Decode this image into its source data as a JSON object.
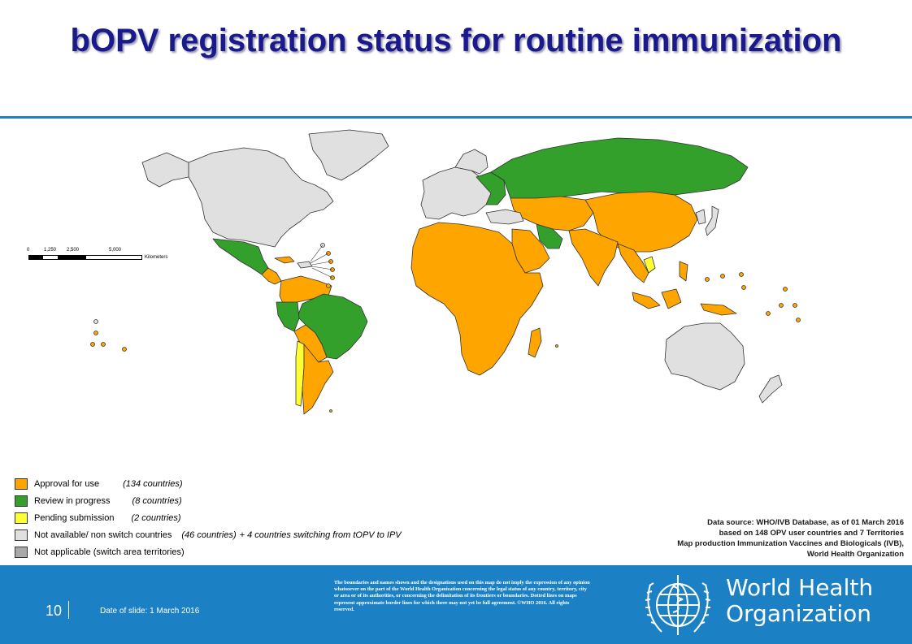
{
  "title": "bOPV registration status for routine immunization",
  "colors": {
    "approval": "#FFA500",
    "review": "#33A02C",
    "pending": "#FFFF33",
    "not_available": "#E0E0E0",
    "not_applicable": "#A9A9A9",
    "accent_blue": "#1B80C4",
    "title_blue": "#1A1A8C"
  },
  "scalebar": {
    "ticks": [
      "0",
      "1,250",
      "2,500",
      "5,000"
    ],
    "unit": "Kilometers"
  },
  "legend": [
    {
      "label": "Approval for use",
      "count": "(134 countries)",
      "extra": "",
      "color": "#FFA500"
    },
    {
      "label": "Review in progress",
      "count": "(8 countries)",
      "extra": "",
      "color": "#33A02C"
    },
    {
      "label": "Pending submission",
      "count": "(2 countries)",
      "extra": "",
      "color": "#FFFF33"
    },
    {
      "label": "Not available/ non switch countries",
      "count": "(46 countries)",
      "extra": "+ 4 countries switching from tOPV to IPV",
      "color": "#E0E0E0"
    },
    {
      "label": "Not applicable (switch area territories)",
      "count": "",
      "extra": "",
      "color": "#A9A9A9"
    }
  ],
  "source": {
    "line1": "Data source: WHO/IVB Database, as of 01 March 2016",
    "line2": "based on 148 OPV user countries and 7 Territories",
    "line3": "Map production Immunization Vaccines and Biologicals (IVB),",
    "line4": "World Health Organization"
  },
  "footer": {
    "slide_number": "10",
    "date": "Date of slide: 1 March 2016",
    "disclaimer": "The boundaries and names shown and the designations used on this map do not imply the expression of any opinion whatsoever on the part of the World Health Organization concerning the legal status of any country, territory, city or area or of its authorities, or concerning the delimitation of its frontiers or boundaries. Dotted lines on maps represent approximate border lines for which there may not yet be full agreement. ©WHO 2016. All rights reserved.",
    "org_line1": "World Health",
    "org_line2": "Organization"
  }
}
